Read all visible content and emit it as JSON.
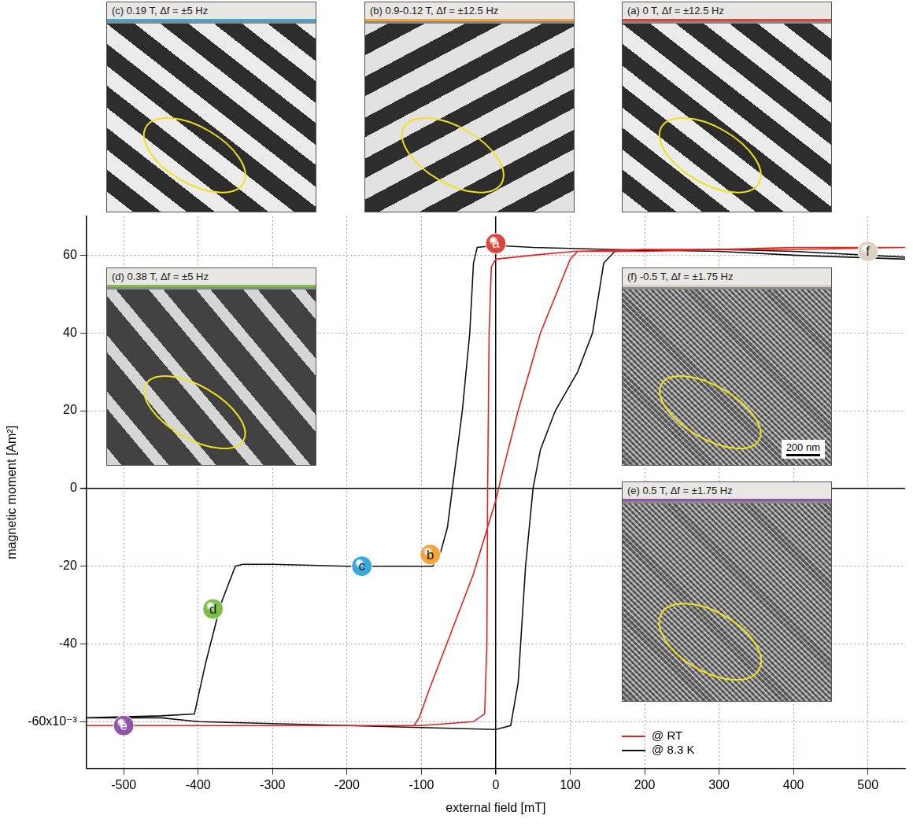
{
  "chart_data": {
    "type": "line",
    "x_label": "external field [mT]",
    "y_label": "magnetic moment [Am²]",
    "xlim": [
      -550,
      550
    ],
    "xticks": [
      -500,
      -400,
      -300,
      -200,
      -100,
      0,
      100,
      200,
      300,
      400,
      500
    ],
    "ylim": [
      -72,
      70
    ],
    "yticks": [
      {
        "value": -60,
        "label": "-60x10⁻³"
      },
      -40,
      -20,
      0,
      20,
      40,
      60
    ],
    "grid": true,
    "legend": "lower right",
    "series": [
      {
        "name": "@ RT",
        "color": "#e8201c",
        "marker": "none",
        "line_style": "solid",
        "x": [
          550,
          400,
          300,
          200,
          150,
          110,
          100,
          60,
          30,
          10,
          0,
          -30,
          -60,
          -90,
          -103,
          -110,
          -200,
          -300,
          -400,
          -550,
          -400,
          -300,
          -200,
          -100,
          -30,
          -15,
          -12,
          -11,
          -9,
          -6,
          0,
          50,
          105,
          200,
          300,
          400,
          550
        ],
        "values": [
          62,
          61.5,
          61.5,
          61,
          61,
          61,
          59,
          40,
          20,
          5,
          -3,
          -22,
          -37,
          -52,
          -59,
          -61,
          -61,
          -61,
          -61,
          -61,
          -61,
          -61,
          -61,
          -61,
          -60,
          -58,
          -40,
          0,
          40,
          57,
          59,
          60,
          61,
          61.5,
          61.5,
          62,
          62
        ]
      },
      {
        "name": "@ 8.3 K",
        "color": "#111111",
        "marker": "none",
        "line_style": "solid",
        "x": [
          550,
          400,
          300,
          150,
          50,
          0,
          -25,
          -30,
          -35,
          -45,
          -55,
          -65,
          -75,
          -85,
          -100,
          -200,
          -300,
          -340,
          -350,
          -370,
          -390,
          -405,
          -450,
          -550,
          -450,
          -400,
          -200,
          0,
          20,
          30,
          40,
          50,
          60,
          80,
          110,
          130,
          145,
          160,
          300,
          400,
          550
        ],
        "values": [
          59,
          60,
          61,
          61.5,
          62,
          62.5,
          62,
          58,
          40,
          20,
          5,
          -10,
          -17,
          -20,
          -20,
          -20,
          -19.5,
          -19.5,
          -20,
          -30,
          -45,
          -58,
          -58.5,
          -59,
          -59,
          -60,
          -61,
          -62,
          -61,
          -50,
          -20,
          0,
          10,
          20,
          30,
          40,
          58,
          61,
          61.5,
          61,
          59.5
        ]
      }
    ],
    "annotations": [
      {
        "text": "a",
        "x": 0,
        "y": 63,
        "color": "#d9463e"
      },
      {
        "text": "b",
        "x": -88,
        "y": -17,
        "color": "#f3a43b"
      },
      {
        "text": "c",
        "x": -180,
        "y": -20,
        "color": "#39a9dc"
      },
      {
        "text": "d",
        "x": -380,
        "y": -31,
        "color": "#7cc04b"
      },
      {
        "text": "e",
        "x": -500,
        "y": -61,
        "color": "#8e55a8"
      },
      {
        "text": "f",
        "x": 500,
        "y": 61,
        "color": "#d9d2c4"
      }
    ]
  },
  "insets": [
    {
      "title": "(a) 0 T, Δf = ±12.5 Hz",
      "point": "a"
    },
    {
      "title": "(b) 0.9-0.12 T, Δf = ±12.5 Hz",
      "point": "b"
    },
    {
      "title": "(c) 0.19 T, Δf = ±5 Hz",
      "point": "c"
    },
    {
      "title": "(d) 0.38 T, Δf = ±5 Hz",
      "point": "d"
    },
    {
      "title": "(e) 0.5 T, Δf = ±1.75 Hz",
      "point": "e"
    },
    {
      "title": "(f) -0.5 T, Δf = ±1.75 Hz",
      "point": "f",
      "scale_bar": "200 nm"
    }
  ]
}
